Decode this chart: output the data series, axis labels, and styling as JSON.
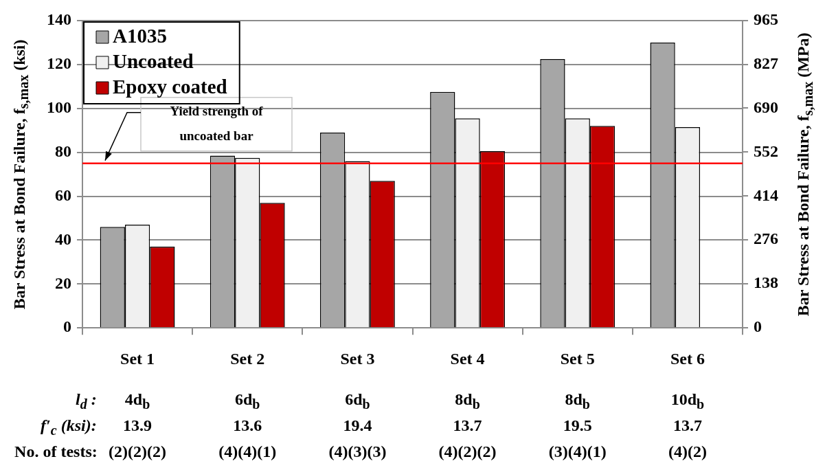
{
  "chart_data": {
    "type": "bar",
    "ylabel": "Bar Stress at Bond Failure, f$_{s,max}$ (ksi)",
    "y2label": "Bar Stress at Bond Failure, f$_{s,max}$ (MPa)",
    "categories": [
      "Set 1",
      "Set 2",
      "Set 3",
      "Set 4",
      "Set 5",
      "Set 6"
    ],
    "series": [
      {
        "name": "A1035",
        "color": "#a6a6a6",
        "values": [
          46,
          78.5,
          89,
          107.5,
          122.5,
          130
        ]
      },
      {
        "name": "Uncoated",
        "color": "#f0f0f0",
        "values": [
          47,
          77.5,
          76,
          95.5,
          95.5,
          91.5
        ]
      },
      {
        "name": "Epoxy coated",
        "color": "#c00000",
        "values": [
          37,
          57,
          67,
          80.5,
          92,
          null
        ]
      }
    ],
    "ylim": [
      0,
      140
    ],
    "yticks": [
      0,
      20,
      40,
      60,
      80,
      100,
      120,
      140
    ],
    "y2lim": [
      0,
      965
    ],
    "y2ticks": [
      0,
      138,
      276,
      414,
      552,
      690,
      827,
      965
    ],
    "ref_lines": [
      {
        "axis": "y",
        "value": 75,
        "label": "Yield strength of uncoated bar",
        "color": "#ff0000"
      }
    ],
    "annotations": [
      "l$_{d}$ :",
      "4d$_{b}$",
      "6d$_{b}$",
      "6d$_{b}$",
      "8d$_{b}$",
      "8d$_{b}$",
      "10d$_{b}$",
      "f′$_{c}$ (ksi):",
      "13.9",
      "13.6",
      "19.4",
      "13.7",
      "19.5",
      "13.7",
      "No. of tests:",
      "(2)(2)(2)",
      "(4)(4)(1)",
      "(4)(3)(3)",
      "(4)(2)(2)",
      "(3)(4)(1)",
      "(4)(2)"
    ],
    "grid": "y",
    "legend": "top left"
  }
}
